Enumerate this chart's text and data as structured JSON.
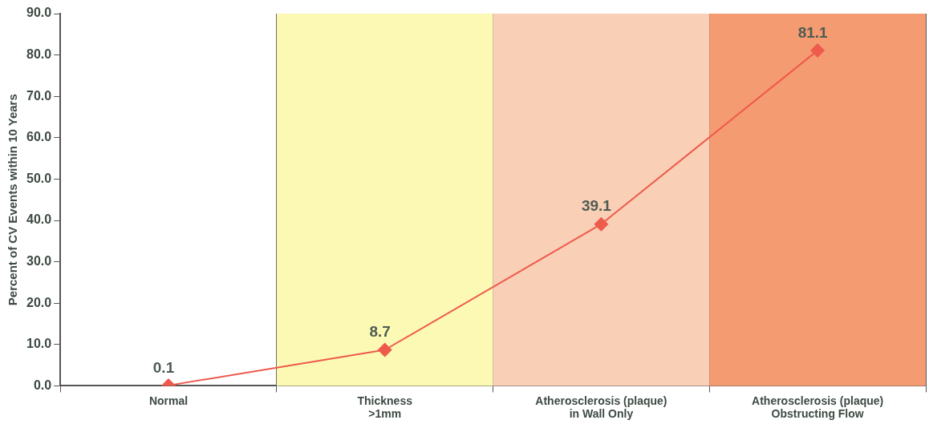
{
  "chart_data": {
    "type": "line",
    "ylabel": "Percent of CV Events within 10 Years",
    "categories": [
      "Normal",
      "Thickness\n>1mm",
      "Atherosclerosis (plaque)\nin Wall Only",
      "Atherosclerosis (plaque)\nObstructing Flow"
    ],
    "series": [
      {
        "color": "#ee5a4c",
        "values": [
          0.1,
          8.7,
          39.1,
          81.1
        ]
      }
    ],
    "ylim": [
      0,
      90
    ],
    "yticks": [
      {
        "value": 0,
        "label": "0.0"
      },
      {
        "value": 10,
        "label": "10.0"
      },
      {
        "value": 20,
        "label": "20.0"
      },
      {
        "value": 30,
        "label": "30.0"
      },
      {
        "value": 40,
        "label": "40.0"
      },
      {
        "value": 50,
        "label": "50.0"
      },
      {
        "value": 60,
        "label": "60.0"
      },
      {
        "value": 70,
        "label": "70.0"
      },
      {
        "value": 80,
        "label": "80.0"
      },
      {
        "value": 90,
        "label": "90.0"
      }
    ],
    "bands": [
      {
        "axis": "x",
        "from": "Thickness\n>1mm",
        "to": "Thickness\n>1mm",
        "color": "#fcf9b4"
      },
      {
        "axis": "x",
        "from": "Atherosclerosis (plaque)\nin Wall Only",
        "to": "Atherosclerosis (plaque)\nin Wall Only",
        "color": "#f9cfb6"
      },
      {
        "axis": "x",
        "from": "Atherosclerosis (plaque)\nObstructing Flow",
        "to": "Atherosclerosis (plaque)\nObstructing Flow",
        "color": "#f59b72"
      }
    ],
    "grid": "x",
    "marker": "diamond",
    "line_style": "solid",
    "data_labels": true,
    "legend": false
  }
}
